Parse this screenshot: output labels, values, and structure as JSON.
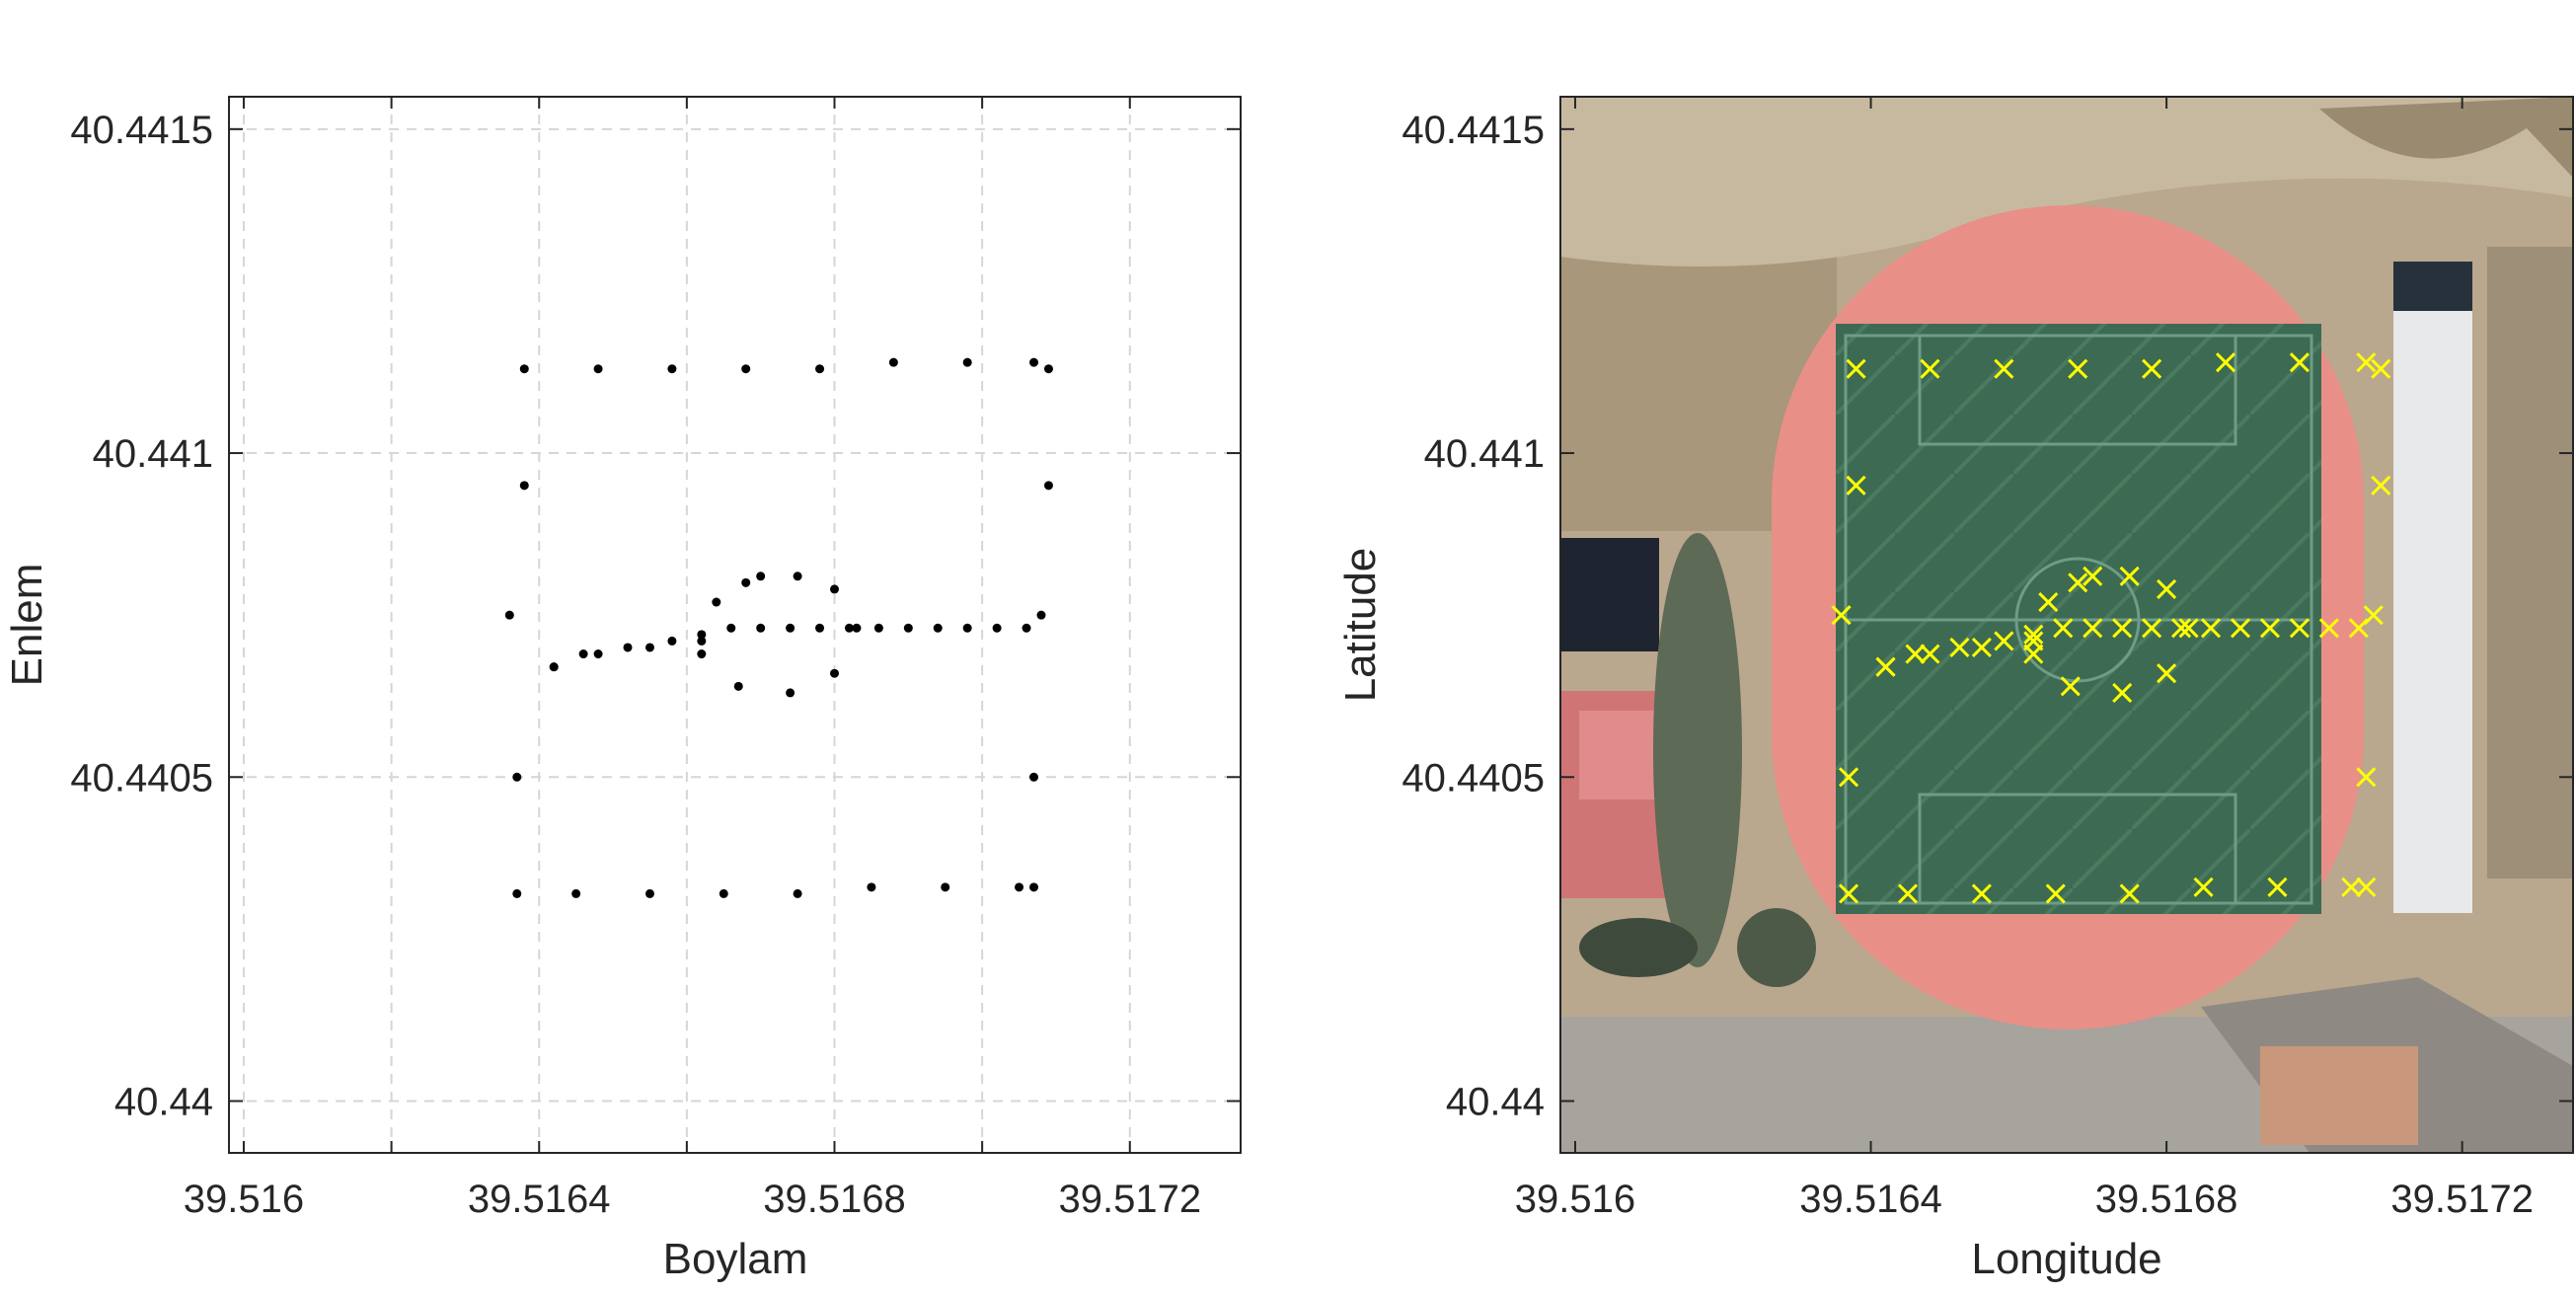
{
  "chart_data": [
    {
      "type": "scatter",
      "xlabel": "Boylam",
      "ylabel": "Enlem",
      "xlim": [
        39.51598,
        39.51735
      ],
      "ylim": [
        40.43992,
        40.44155
      ],
      "xticks": [
        39.516,
        39.5164,
        39.5168,
        39.5172
      ],
      "xtick_labels": [
        "39.516",
        "39.5164",
        "39.5168",
        "39.5172"
      ],
      "xminor": [
        39.5162,
        39.5166,
        39.517,
        39.5174
      ],
      "yticks": [
        40.44,
        40.4405,
        40.441,
        40.4415
      ],
      "ytick_labels": [
        "40.44",
        "40.4405",
        "40.441",
        "40.4415"
      ],
      "grid": true,
      "marker": "dot",
      "marker_color": "#000000",
      "series": [
        {
          "x": [
            39.51642,
            39.51646,
            39.51652,
            39.51658,
            39.51662,
            39.51666,
            39.5167,
            39.51674,
            39.51678,
            39.51682,
            39.51686,
            39.5169,
            39.51694,
            39.51698,
            39.51702,
            39.51706,
            39.51637,
            39.51645,
            39.51655,
            39.51665,
            39.51675,
            39.51685,
            39.51695,
            39.51705,
            39.51707,
            39.51638,
            39.51648,
            39.51658,
            39.51668,
            39.51678,
            39.51688,
            39.51698,
            39.51707,
            39.51709,
            39.51638,
            39.51636,
            39.51637,
            39.51709,
            39.51708,
            39.51707,
            39.51642,
            39.51648,
            39.51655,
            39.51662,
            39.51668,
            39.51675,
            39.5168,
            39.51683,
            39.5168,
            39.51674,
            39.51667,
            39.51662,
            39.51664,
            39.5167
          ],
          "y": [
            40.44067,
            40.44069,
            40.4407,
            40.44071,
            40.44072,
            40.44073,
            40.44073,
            40.44073,
            40.44073,
            40.44073,
            40.44073,
            40.44073,
            40.44073,
            40.44073,
            40.44073,
            40.44073,
            40.44032,
            40.44032,
            40.44032,
            40.44032,
            40.44032,
            40.44033,
            40.44033,
            40.44033,
            40.44033,
            40.44113,
            40.44113,
            40.44113,
            40.44113,
            40.44113,
            40.44114,
            40.44114,
            40.44114,
            40.44113,
            40.44095,
            40.44075,
            40.4405,
            40.44095,
            40.44075,
            40.4405,
            40.44067,
            40.44069,
            40.4407,
            40.44071,
            40.4408,
            40.44081,
            40.44079,
            40.44073,
            40.44066,
            40.44063,
            40.44064,
            40.44069,
            40.44077,
            40.44081
          ]
        }
      ]
    },
    {
      "type": "scatter",
      "xlabel": "Longitude",
      "ylabel": "Latitude",
      "xlim": [
        39.51598,
        39.51735
      ],
      "ylim": [
        40.43992,
        40.44155
      ],
      "xticks": [
        39.516,
        39.5164,
        39.5168,
        39.5172
      ],
      "xtick_labels": [
        "39.516",
        "39.5164",
        "39.5168",
        "39.5172"
      ],
      "yticks": [
        40.44,
        40.4405,
        40.441,
        40.4415
      ],
      "ytick_labels": [
        "40.44",
        "40.4405",
        "40.441",
        "40.4415"
      ],
      "grid": false,
      "background": "satellite image of a football field with running track",
      "marker": "x",
      "marker_color": "#ffff00"
    }
  ]
}
